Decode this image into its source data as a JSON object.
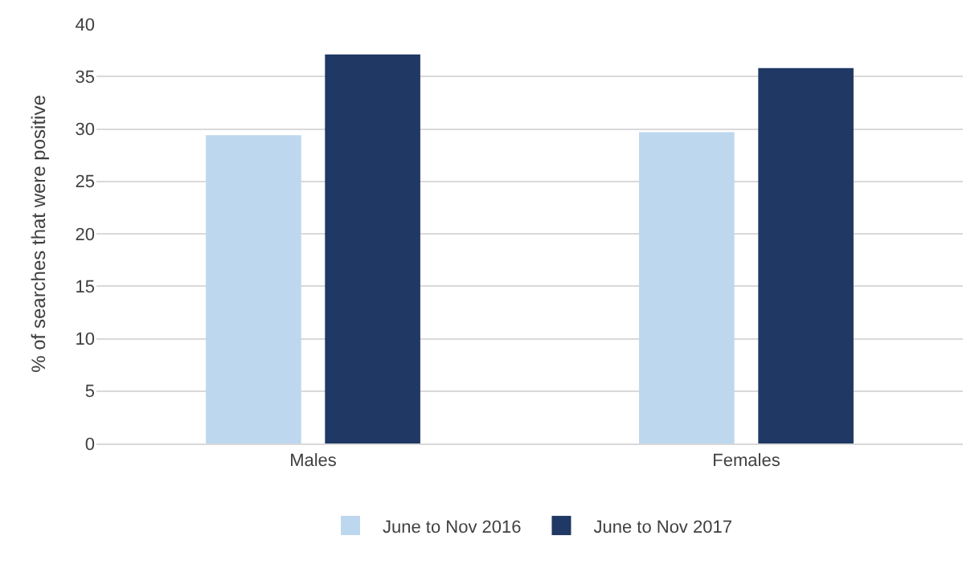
{
  "chart_data": {
    "type": "bar",
    "ylabel": "% of searches that were positive",
    "categories": [
      "Males",
      "Females"
    ],
    "series": [
      {
        "name": "June to Nov 2016",
        "color": "#bdd7ee",
        "values": [
          29.4,
          29.7
        ]
      },
      {
        "name": "June to Nov 2017",
        "color": "#1f3864",
        "values": [
          37.1,
          35.8
        ]
      }
    ],
    "ylim": [
      0,
      40
    ],
    "yticks": [
      0,
      5,
      10,
      15,
      20,
      25,
      30,
      35,
      40
    ],
    "grid": "y",
    "legend": "bottom"
  }
}
